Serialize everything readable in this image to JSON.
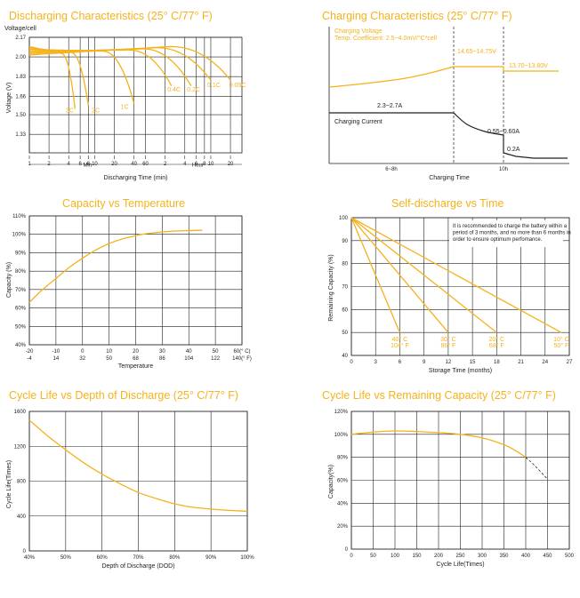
{
  "colors": {
    "accent": "#f5b21b",
    "ink": "#222222"
  },
  "chart_data": [
    {
      "id": "discharge",
      "type": "line",
      "title": "Discharging Characteristics (25° C/77° F)",
      "ylabel_top": "Voltage/cell",
      "ylabel": "Voltage (V)",
      "xlabel": "Discharging Time (min)",
      "y_ticks": [
        "2.17",
        "2.00",
        "1.83",
        "1.66",
        "1.50",
        "1.33"
      ],
      "x_ticks": [
        "1",
        "2",
        "4",
        "6",
        "8",
        "10",
        "20",
        "40",
        "60",
        "2",
        "4",
        "6",
        "8",
        "10",
        "20"
      ],
      "range_labels": {
        "min": "Min",
        "hour": "Hour"
      },
      "ylim": [
        1.17,
        2.17
      ],
      "series": [
        {
          "name": "3C",
          "end_time_min": 5,
          "end_voltage": 1.55
        },
        {
          "name": "2C",
          "end_time_min": 8,
          "end_voltage": 1.58
        },
        {
          "name": "1C",
          "end_time_min": 40,
          "end_voltage": 1.6
        },
        {
          "name": "0.4C",
          "end_time_min": 150,
          "end_voltage": 1.75
        },
        {
          "name": "0.2C",
          "end_time_min": 300,
          "end_voltage": 1.75
        },
        {
          "name": "0.1C",
          "end_time_min": 600,
          "end_voltage": 1.8
        },
        {
          "name": "0.05C",
          "end_time_min": 1200,
          "end_voltage": 1.8
        }
      ],
      "series_labels": [
        "3C",
        "2C",
        "1C",
        "0.4C",
        "0.2C",
        "0.1C",
        "0.05C"
      ]
    },
    {
      "id": "charging",
      "type": "line",
      "title": "Charging Characteristics (25° C/77° F)",
      "xlabel": "Charging Time",
      "annotations": {
        "voltage_label": "Charging Voltage",
        "coefficient": "Temp. Coefficient: 2.5~4.0mV/°C*cell",
        "v1": "14.65~14.75V",
        "v2": "13.70~13.80V",
        "current_label": "Charging Current",
        "i1": "2.3~2.7A",
        "i2": "0.55~0.60A",
        "i3": "0.2A"
      },
      "x_ticks": [
        "6~8h",
        "10h"
      ]
    },
    {
      "id": "capacity_temp",
      "type": "line",
      "title": "Capacity vs Temperature",
      "ylabel": "Capacity (%)",
      "xlabel": "Temperature",
      "y_ticks": [
        "110%",
        "100%",
        "90%",
        "80%",
        "70%",
        "60%",
        "50%",
        "40%"
      ],
      "x_ticks_c": [
        "-20",
        "-10",
        "0",
        "10",
        "20",
        "30",
        "40",
        "50",
        "60(° C)"
      ],
      "x_ticks_f": [
        "-4",
        "14",
        "32",
        "50",
        "68",
        "86",
        "104",
        "122",
        "140(° F)"
      ],
      "x": [
        -20,
        -15,
        -10,
        -5,
        0,
        5,
        10,
        15,
        20,
        25,
        30,
        35,
        40,
        45
      ],
      "y": [
        63,
        70,
        76,
        82,
        87,
        91.5,
        95,
        97.5,
        99.3,
        100.5,
        101.3,
        101.8,
        102,
        102.2
      ],
      "xlim": [
        -20,
        60
      ],
      "ylim": [
        40,
        110
      ]
    },
    {
      "id": "self_discharge",
      "type": "line",
      "title": "Self-discharge vs Time",
      "ylabel": "Remaining Capacity (%)",
      "xlabel": "Storage Time (months)",
      "note": "It is recommended to charge the battery within a period of 3 months, and no more than 6 months in order to ensure optimum perfomance.",
      "y_ticks": [
        "100",
        "90",
        "80",
        "70",
        "60",
        "50",
        "40"
      ],
      "x_ticks": [
        "0",
        "3",
        "6",
        "9",
        "12",
        "15",
        "18",
        "21",
        "24",
        "27"
      ],
      "xlim": [
        0,
        27
      ],
      "ylim": [
        40,
        100
      ],
      "series": [
        {
          "name": "40° C / 104° F",
          "x": [
            0,
            6
          ],
          "y": [
            100,
            50
          ]
        },
        {
          "name": "30° C / 86° F",
          "x": [
            0,
            12
          ],
          "y": [
            100,
            50
          ]
        },
        {
          "name": "20° C / 68° F",
          "x": [
            0,
            18
          ],
          "y": [
            100,
            50
          ]
        },
        {
          "name": "10° C / 50° F",
          "x": [
            0,
            26
          ],
          "y": [
            100,
            50
          ]
        }
      ],
      "series_labels": [
        {
          "c": "40° C",
          "f": "104° F"
        },
        {
          "c": "30° C",
          "f": "86° F"
        },
        {
          "c": "20° C",
          "f": "68° F"
        },
        {
          "c": "10° C",
          "f": "50° F"
        }
      ]
    },
    {
      "id": "cycle_dod",
      "type": "line",
      "title": "Cycle Life vs Depth of Discharge (25° C/77° F)",
      "ylabel": "Cycle Life(Times)",
      "xlabel": "Depth of Discharge (DOD)",
      "y_ticks": [
        "1600",
        "1200",
        "800",
        "400",
        "0"
      ],
      "x_ticks": [
        "40%",
        "50%",
        "60%",
        "70%",
        "80%",
        "90%",
        "100%"
      ],
      "x": [
        40,
        45,
        50,
        55,
        60,
        65,
        70,
        75,
        80,
        85,
        90,
        95,
        100
      ],
      "y": [
        1500,
        1320,
        1160,
        1010,
        880,
        770,
        670,
        600,
        540,
        500,
        480,
        465,
        455
      ],
      "xlim": [
        40,
        100
      ],
      "ylim": [
        0,
        1600
      ]
    },
    {
      "id": "cycle_capacity",
      "type": "line",
      "title": "Cycle Life vs Remaining Capacity (25° C/77° F)",
      "ylabel": "Capacity(%)",
      "xlabel": "Cycle Life(Times)",
      "y_ticks": [
        "120%",
        "100%",
        "80%",
        "60%",
        "40%",
        "20%",
        "0"
      ],
      "x_ticks": [
        "0",
        "50",
        "100",
        "150",
        "200",
        "250",
        "300",
        "350",
        "400",
        "450",
        "500"
      ],
      "x": [
        0,
        50,
        100,
        150,
        200,
        250,
        300,
        350,
        380,
        400
      ],
      "y": [
        100,
        102,
        103,
        102.5,
        101.5,
        100,
        97,
        91,
        85,
        80
      ],
      "extrapolated": {
        "x": [
          400,
          420,
          450
        ],
        "y": [
          80,
          73,
          61
        ]
      },
      "xlim": [
        0,
        500
      ],
      "ylim": [
        0,
        120
      ]
    }
  ]
}
